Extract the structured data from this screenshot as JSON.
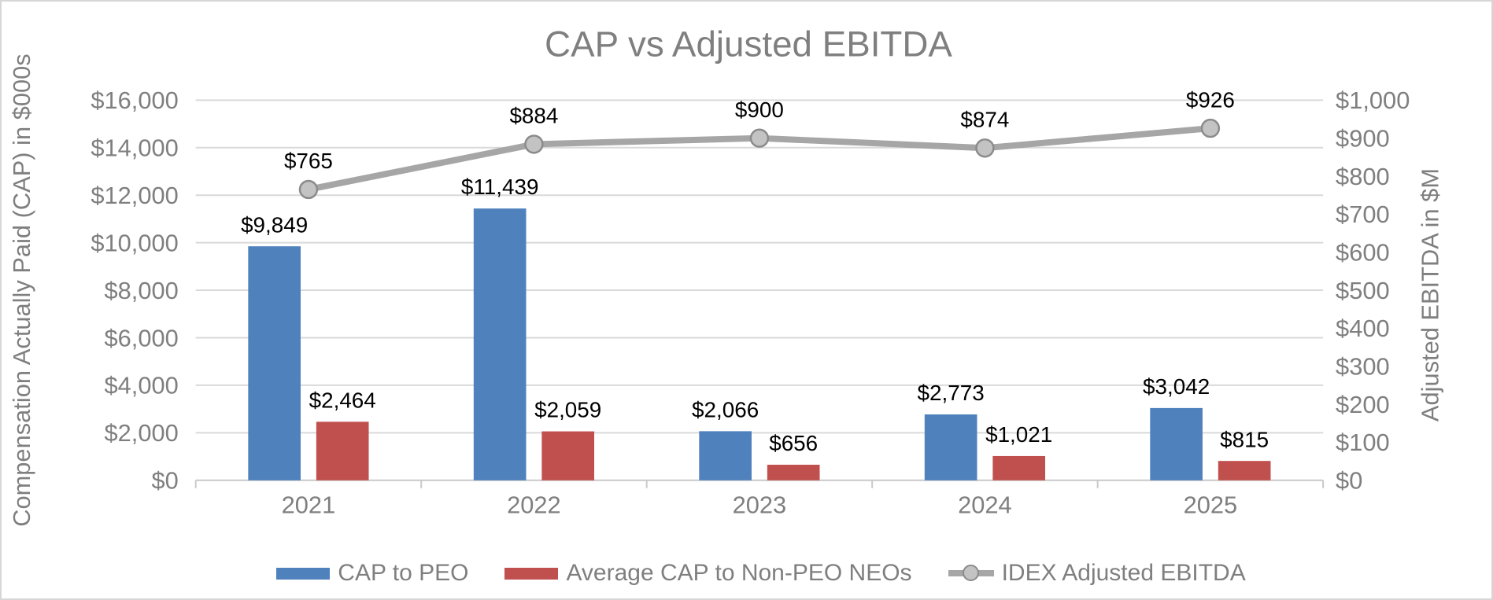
{
  "chart_data": {
    "type": "bar+line combo",
    "title": "CAP vs Adjusted EBITDA",
    "categories": [
      "2021",
      "2022",
      "2023",
      "2024",
      "2025"
    ],
    "series": [
      {
        "name": "CAP to PEO",
        "type": "bar",
        "axis": "left",
        "color": "#4F81BD",
        "values": [
          9849,
          11439,
          2066,
          2773,
          3042
        ],
        "labels": [
          "$9,849",
          "$11,439",
          "$2,066",
          "$2,773",
          "$3,042"
        ]
      },
      {
        "name": "Average CAP to Non-PEO NEOs",
        "type": "bar",
        "axis": "left",
        "color": "#C0504D",
        "values": [
          2464,
          2059,
          656,
          1021,
          815
        ],
        "labels": [
          "$2,464",
          "$2,059",
          "$656",
          "$1,021",
          "$815"
        ]
      },
      {
        "name": "IDEX Adjusted EBITDA",
        "type": "line",
        "axis": "right",
        "color": "#A6A6A6",
        "marker_fill": "#C3C3C3",
        "marker_stroke": "#8B8B8B",
        "values": [
          765,
          884,
          900,
          874,
          926
        ],
        "labels": [
          "$765",
          "$884",
          "$900",
          "$874",
          "$926"
        ]
      }
    ],
    "left_axis": {
      "title": "Compensation Actually Paid (CAP) in $000s",
      "min": 0,
      "max": 16000,
      "step": 2000,
      "ticks": [
        "$0",
        "$2,000",
        "$4,000",
        "$6,000",
        "$8,000",
        "$10,000",
        "$12,000",
        "$14,000",
        "$16,000"
      ]
    },
    "right_axis": {
      "title": "Adjusted EBITDA in $M",
      "min": 0,
      "max": 1000,
      "step": 100,
      "ticks": [
        "$0",
        "$100",
        "$200",
        "$300",
        "$400",
        "$500",
        "$600",
        "$700",
        "$800",
        "$900",
        "$1,000"
      ]
    },
    "legend_position": "bottom",
    "grid": true,
    "colors": {
      "title_text": "#7F7F7F",
      "axis_text": "#7F7F7F",
      "data_label_text": "#000000",
      "gridline": "#D9D9D9",
      "axis_line": "#C9C9C9"
    }
  }
}
